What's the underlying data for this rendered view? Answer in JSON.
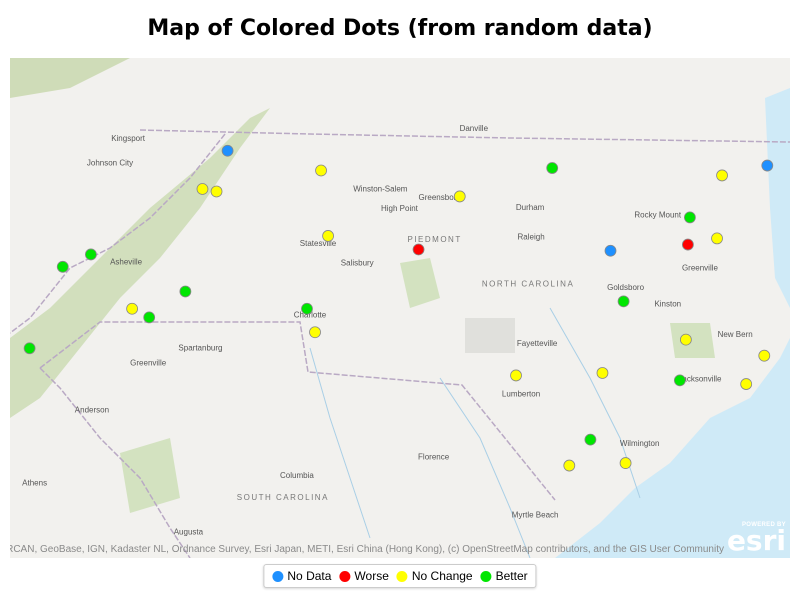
{
  "title": "Map of Colored Dots (from random data)",
  "categories": {
    "no_data": {
      "label": "No Data",
      "color": "#1e90ff"
    },
    "worse": {
      "label": "Worse",
      "color": "#ff0000"
    },
    "no_change": {
      "label": "No Change",
      "color": "#ffff00"
    },
    "better": {
      "label": "Better",
      "color": "#00e600"
    }
  },
  "legend": [
    "no_data",
    "worse",
    "no_change",
    "better"
  ],
  "points": [
    {
      "lon": -81.66,
      "lat": 36.52,
      "status": "no_data"
    },
    {
      "lon": -80.73,
      "lat": 36.36,
      "status": "no_change"
    },
    {
      "lon": -81.91,
      "lat": 36.21,
      "status": "no_change"
    },
    {
      "lon": -81.77,
      "lat": 36.19,
      "status": "no_change"
    },
    {
      "lon": -78.43,
      "lat": 36.38,
      "status": "better"
    },
    {
      "lon": -79.35,
      "lat": 36.15,
      "status": "no_change"
    },
    {
      "lon": -76.74,
      "lat": 36.32,
      "status": "no_change"
    },
    {
      "lon": -76.29,
      "lat": 36.4,
      "status": "no_data"
    },
    {
      "lon": -77.06,
      "lat": 35.98,
      "status": "better"
    },
    {
      "lon": -77.08,
      "lat": 35.76,
      "status": "worse"
    },
    {
      "lon": -76.79,
      "lat": 35.81,
      "status": "no_change"
    },
    {
      "lon": -77.85,
      "lat": 35.71,
      "status": "no_data"
    },
    {
      "lon": -79.76,
      "lat": 35.72,
      "status": "worse"
    },
    {
      "lon": -80.66,
      "lat": 35.83,
      "status": "no_change"
    },
    {
      "lon": -83.02,
      "lat": 35.68,
      "status": "better"
    },
    {
      "lon": -83.3,
      "lat": 35.58,
      "status": "better"
    },
    {
      "lon": -82.08,
      "lat": 35.38,
      "status": "better"
    },
    {
      "lon": -82.61,
      "lat": 35.24,
      "status": "no_change"
    },
    {
      "lon": -82.44,
      "lat": 35.17,
      "status": "better"
    },
    {
      "lon": -80.87,
      "lat": 35.24,
      "status": "better"
    },
    {
      "lon": -80.79,
      "lat": 35.05,
      "status": "no_change"
    },
    {
      "lon": -77.72,
      "lat": 35.3,
      "status": "better"
    },
    {
      "lon": -77.1,
      "lat": 34.99,
      "status": "no_change"
    },
    {
      "lon": -76.32,
      "lat": 34.86,
      "status": "no_change"
    },
    {
      "lon": -83.63,
      "lat": 34.92,
      "status": "better"
    },
    {
      "lon": -78.79,
      "lat": 34.7,
      "status": "no_change"
    },
    {
      "lon": -77.93,
      "lat": 34.72,
      "status": "no_change"
    },
    {
      "lon": -77.16,
      "lat": 34.66,
      "status": "better"
    },
    {
      "lon": -76.5,
      "lat": 34.63,
      "status": "no_change"
    },
    {
      "lon": -78.05,
      "lat": 34.18,
      "status": "better"
    },
    {
      "lon": -78.26,
      "lat": 33.97,
      "status": "no_change"
    },
    {
      "lon": -77.7,
      "lat": 33.99,
      "status": "no_change"
    }
  ],
  "places": [
    {
      "name": "Charlotte",
      "lon": -80.84,
      "lat": 35.17
    },
    {
      "name": "Raleigh",
      "lon": -78.64,
      "lat": 35.8
    },
    {
      "name": "Durham",
      "lon": -78.65,
      "lat": 36.04
    },
    {
      "name": "Greensboro",
      "lon": -79.55,
      "lat": 36.12
    },
    {
      "name": "Winston-Salem",
      "lon": -80.14,
      "lat": 36.19
    },
    {
      "name": "High Point",
      "lon": -79.95,
      "lat": 36.03
    },
    {
      "name": "Statesville",
      "lon": -80.76,
      "lat": 35.75
    },
    {
      "name": "Salisbury",
      "lon": -80.37,
      "lat": 35.67
    },
    {
      "name": "Asheville",
      "lon": -82.67,
      "lat": 35.6
    },
    {
      "name": "Kingsport",
      "lon": -82.65,
      "lat": 36.6
    },
    {
      "name": "Johnson City",
      "lon": -82.83,
      "lat": 36.4
    },
    {
      "name": "Greenville",
      "lon": -82.45,
      "lat": 34.78
    },
    {
      "name": "Spartanburg",
      "lon": -81.93,
      "lat": 34.9
    },
    {
      "name": "Anderson",
      "lon": -83.01,
      "lat": 34.4
    },
    {
      "name": "Columbia",
      "lon": -80.97,
      "lat": 33.87
    },
    {
      "name": "Florence",
      "lon": -79.61,
      "lat": 34.02
    },
    {
      "name": "Fayetteville",
      "lon": -78.58,
      "lat": 34.94
    },
    {
      "name": "Lumberton",
      "lon": -78.74,
      "lat": 34.53
    },
    {
      "name": "Wilmington",
      "lon": -77.56,
      "lat": 34.13
    },
    {
      "name": "Myrtle Beach",
      "lon": -78.6,
      "lat": 33.55
    },
    {
      "name": "Greenville",
      "lon": -76.96,
      "lat": 35.55
    },
    {
      "name": "Rocky Mount",
      "lon": -77.38,
      "lat": 35.98
    },
    {
      "name": "Goldsboro",
      "lon": -77.7,
      "lat": 35.39
    },
    {
      "name": "Kinston",
      "lon": -77.28,
      "lat": 35.26
    },
    {
      "name": "New Bern",
      "lon": -76.61,
      "lat": 35.01
    },
    {
      "name": "Jacksonville",
      "lon": -76.96,
      "lat": 34.65
    },
    {
      "name": "Danville",
      "lon": -79.21,
      "lat": 36.68
    },
    {
      "name": "Augusta",
      "lon": -82.05,
      "lat": 33.3
    },
    {
      "name": "Athens",
      "lon": -83.58,
      "lat": 33.81
    }
  ],
  "regions": [
    {
      "name": "NORTH CAROLINA",
      "lon": -78.67,
      "lat": 35.42
    },
    {
      "name": "SOUTH CAROLINA",
      "lon": -81.11,
      "lat": 33.69
    },
    {
      "name": "PIEDMONT",
      "lon": -79.6,
      "lat": 35.78
    }
  ],
  "attribution": "FAO, NPS, NRCAN, GeoBase, IGN, Kadaster NL, Ordnance Survey, Esri Japan, METI, Esri China (Hong Kong), (c) OpenStreetMap contributors, and the GIS User Community",
  "logo": {
    "powered_by": "POWERED BY",
    "brand": "esri"
  }
}
